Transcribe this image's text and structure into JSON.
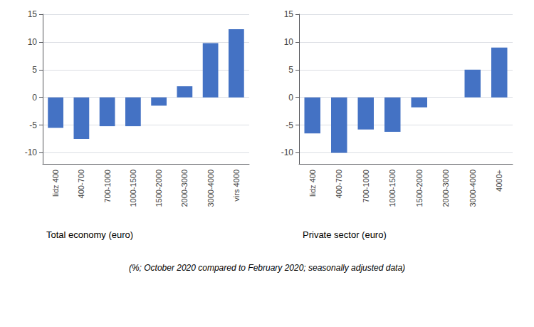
{
  "chart_data": [
    {
      "type": "bar",
      "title": "Total economy (euro)",
      "categories": [
        "lidz 400",
        "400-700",
        "700-1000",
        "1000-1500",
        "1500-2000",
        "2000-3000",
        "3000-4000",
        "virs 4000"
      ],
      "values": [
        -5.5,
        -7.5,
        -5.2,
        -5.2,
        -1.5,
        2.0,
        9.8,
        12.3
      ],
      "color": "#4472C4",
      "ylim": [
        -12,
        15
      ],
      "yticks": [
        -10,
        -5,
        0,
        5,
        10,
        15
      ],
      "grid": true
    },
    {
      "type": "bar",
      "title": "Private sector (euro)",
      "categories": [
        "lidz 400",
        "400-700",
        "700-1000",
        "1000-1500",
        "1500-2000",
        "2000-3000",
        "3000-4000",
        "4000+"
      ],
      "values": [
        -6.5,
        -10.0,
        -5.8,
        -6.2,
        -1.8,
        0.0,
        5.0,
        9.0
      ],
      "color": "#4472C4",
      "ylim": [
        -12,
        15
      ],
      "yticks": [
        -10,
        -5,
        0,
        5,
        10,
        15
      ],
      "grid": true
    }
  ],
  "subtitle": "(%; October 2020 compared to February 2020; seasonally adjusted data)"
}
